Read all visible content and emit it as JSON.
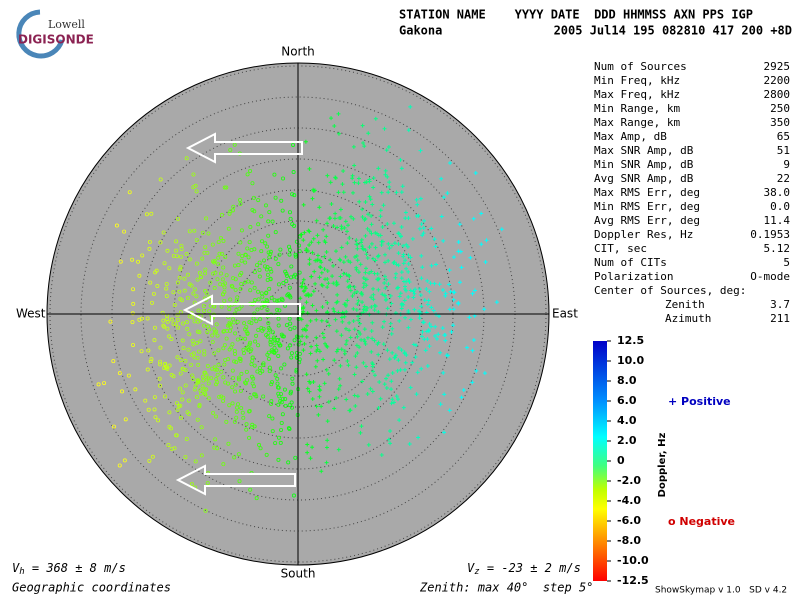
{
  "header": {
    "logo_top": "Lowell",
    "logo_bottom": "DIGISONDE",
    "columns_line": "STATION NAME    YYYY DATE  DDD HHMMSS AXN PPS IGP",
    "station": "Gakona",
    "values_line": "2005 Jul14 195 082810 417 200 +8D"
  },
  "compass": {
    "north": "North",
    "south": "South",
    "west": "West",
    "east": "East"
  },
  "parameters": [
    [
      "Num of Sources",
      "2925"
    ],
    [
      "Min Freq, kHz",
      "2200"
    ],
    [
      "Max Freq, kHz",
      "2800"
    ],
    [
      "Min Range, km",
      "250"
    ],
    [
      "Max Range, km",
      "350"
    ],
    [
      "Max Amp, dB",
      "65"
    ],
    [
      "Max SNR Amp, dB",
      "51"
    ],
    [
      "Min SNR Amp, dB",
      "9"
    ],
    [
      "Avg SNR Amp, dB",
      "22"
    ],
    [
      "Max RMS Err, deg",
      "38.0"
    ],
    [
      "Min RMS Err, deg",
      "0.0"
    ],
    [
      "Avg RMS Err, deg",
      "11.4"
    ],
    [
      "Doppler Res, Hz",
      "0.1953"
    ],
    [
      "CIT, sec",
      "5.12"
    ],
    [
      "Num of CITs",
      "5"
    ],
    [
      "Polarization",
      "O-mode"
    ]
  ],
  "center": {
    "title": "Center of Sources, deg:",
    "rows": [
      [
        "Zenith",
        "3.7"
      ],
      [
        "Azimuth",
        "211"
      ]
    ]
  },
  "colorbar": {
    "label": "Doppler, Hz",
    "ticks": [
      "12.5",
      "10.0",
      "8.0",
      "6.0",
      "4.0",
      "2.0",
      "0",
      "-2.0",
      "-4.0",
      "-6.0",
      "-8.0",
      "-10.0",
      "-12.5"
    ]
  },
  "legend": {
    "positive": "+ Positive",
    "negative": "o Negative"
  },
  "footer": {
    "vh_symbol": "V",
    "vh_sub": "h",
    "vh_text": " = 368 ± 8 m/s",
    "vz_symbol": "V",
    "vz_sub": "z",
    "vz_text": " = -23 ± 2 m/s",
    "coords": "Geographic coordinates",
    "zenith": "Zenith: max 40°  step 5°",
    "version": "ShowSkymap v 1.0   SD v 4.2"
  }
}
